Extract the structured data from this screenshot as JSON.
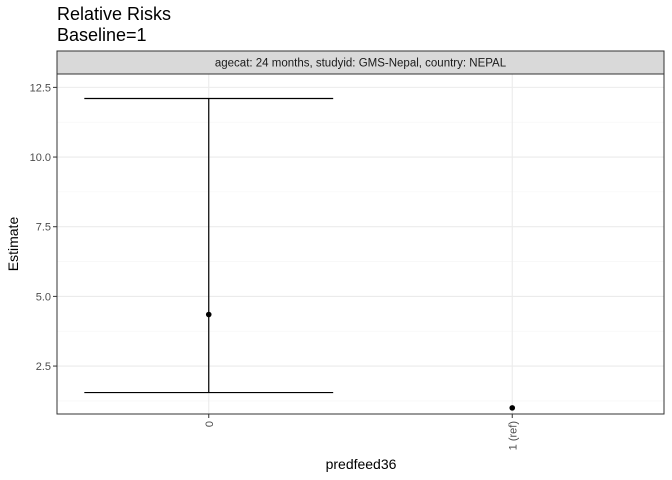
{
  "chart_data": {
    "type": "errorbar",
    "title": "Relative Risks",
    "subtitle": "Baseline=1",
    "facet_label": "agecat: 24 months, studyid: GMS-Nepal, country: NEPAL",
    "xlabel": "predfeed36",
    "ylabel": "Estimate",
    "categories": [
      "0",
      "1 (ref)"
    ],
    "estimates": [
      4.35,
      1.0
    ],
    "lower": [
      1.55,
      null
    ],
    "upper": [
      12.1,
      null
    ],
    "y_ticks": [
      2.5,
      5.0,
      7.5,
      10.0,
      12.5
    ],
    "y_tick_labels": [
      "2.5",
      "5.0",
      "7.5",
      "10.0",
      "12.5"
    ],
    "ylim": [
      0.78,
      12.98
    ],
    "grid": true,
    "colors": {
      "panel_border": "#333333",
      "strip_fill": "#d9d9d9",
      "grid_major": "#ebebeb",
      "grid_minor": "#f5f5f5",
      "mark": "#000000"
    }
  }
}
